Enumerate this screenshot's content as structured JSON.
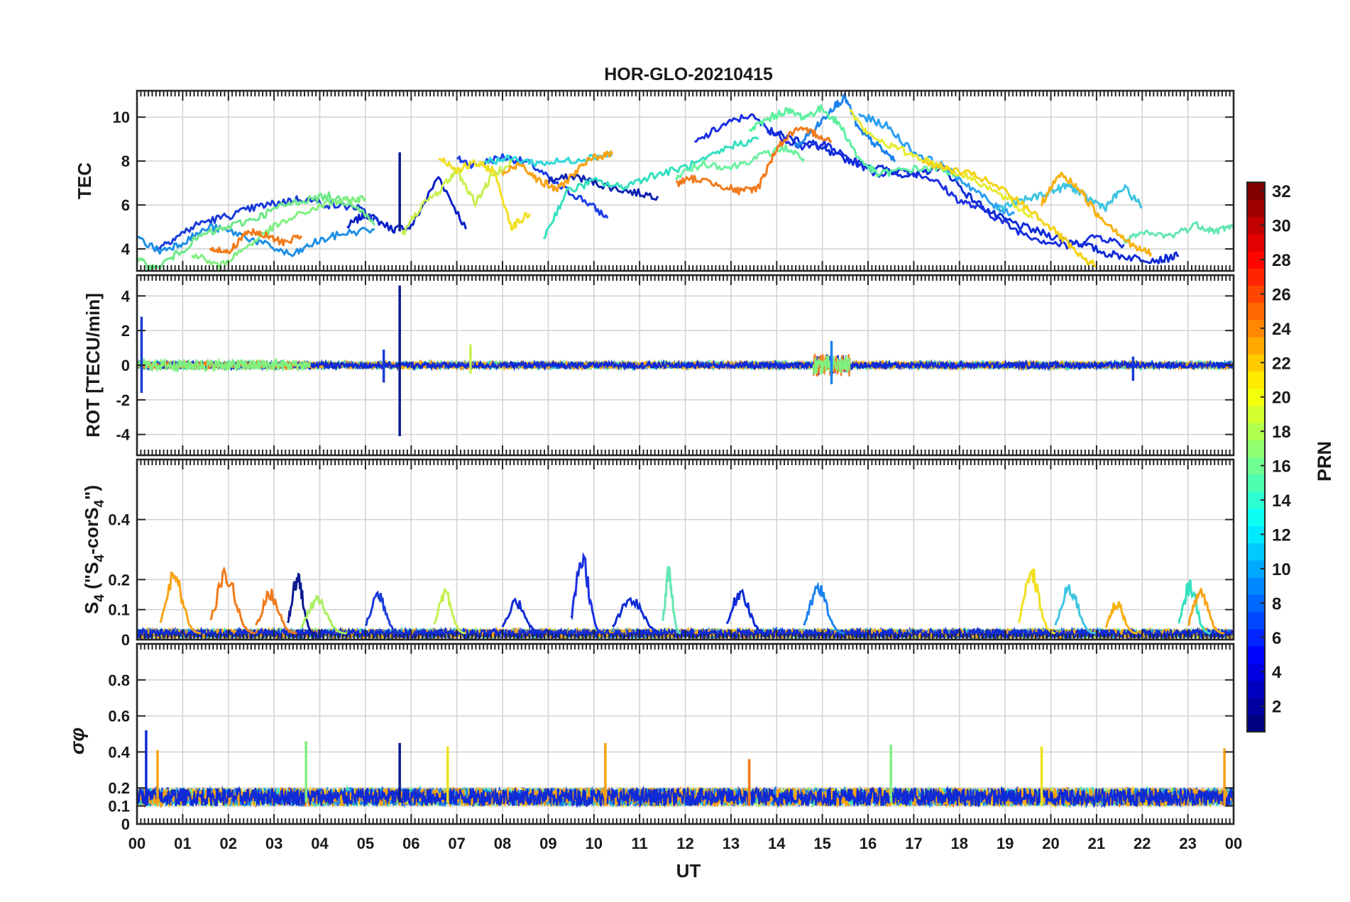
{
  "chart_data": {
    "type": "line",
    "title": "HOR-GLO-20210415",
    "xlabel": "UT",
    "x_ticks": [
      "00",
      "01",
      "02",
      "03",
      "04",
      "05",
      "06",
      "07",
      "08",
      "09",
      "10",
      "11",
      "12",
      "13",
      "14",
      "15",
      "16",
      "17",
      "18",
      "19",
      "20",
      "21",
      "22",
      "23",
      "00"
    ],
    "xlim": [
      0,
      24
    ],
    "grid": true,
    "panels": [
      {
        "id": "tec",
        "ylabel": "TEC",
        "ylim": [
          3,
          11.2
        ],
        "yticks": [
          4,
          6,
          8,
          10
        ],
        "ytick_labels": [
          "4",
          "6",
          "8",
          "10"
        ],
        "series": [
          {
            "prn": 3,
            "color": "#0a1fc8",
            "x": [
              4.6,
              5.0,
              5.6,
              6.0,
              6.6,
              7.2
            ],
            "y": [
              5.0,
              5.6,
              4.9,
              5.0,
              7.3,
              4.9
            ]
          },
          {
            "prn": 5,
            "color": "#1a3ee8",
            "x": [
              7.0,
              7.4,
              8.0,
              8.6,
              9.2,
              9.8,
              10.3
            ],
            "y": [
              8.1,
              7.8,
              8.2,
              7.9,
              6.9,
              6.2,
              5.4
            ]
          },
          {
            "prn": 2,
            "color": "#1022b0",
            "x": [
              9.0,
              9.6,
              10.2,
              10.8,
              11.4
            ],
            "y": [
              7.1,
              7.3,
              6.9,
              6.6,
              6.4
            ]
          },
          {
            "prn": 4,
            "color": "#0f2bd6",
            "x": [
              13.8,
              14.2,
              14.8,
              15.2,
              15.8,
              16.4,
              17.0,
              17.6,
              18.2,
              18.8,
              19.4,
              20.0,
              20.6,
              21.2,
              21.8,
              22.4,
              22.8
            ],
            "y": [
              9.4,
              9.1,
              8.8,
              8.3,
              7.9,
              7.6,
              7.3,
              7.8,
              6.4,
              5.5,
              5.0,
              4.6,
              4.3,
              3.8,
              3.6,
              3.5,
              3.7
            ]
          },
          {
            "prn": 3,
            "color": "#1a2fe0",
            "x": [
              12.2,
              12.8,
              13.4,
              14.0,
              14.6,
              15.0,
              15.6,
              16.2,
              16.8,
              17.4,
              18.0,
              18.6,
              19.2,
              19.8,
              20.4,
              21.0,
              21.6
            ],
            "y": [
              8.8,
              9.6,
              10.1,
              9.2,
              8.6,
              8.8,
              8.1,
              7.4,
              7.6,
              7.2,
              6.2,
              5.7,
              4.9,
              4.4,
              4.1,
              4.6,
              4.2
            ]
          },
          {
            "prn": 4,
            "color": "#1a3ad8",
            "x": [
              0.4,
              0.9,
              1.4,
              2.0,
              2.6,
              3.1,
              3.6,
              4.2,
              4.8,
              5.3
            ],
            "y": [
              4.0,
              4.6,
              5.2,
              5.5,
              5.9,
              6.1,
              6.3,
              6.0,
              5.9,
              5.2
            ]
          },
          {
            "prn": 7,
            "color": "#1e8fe6",
            "x": [
              0.0,
              0.5,
              1.0,
              1.6,
              2.2,
              2.8,
              3.4,
              3.9,
              4.5,
              5.2
            ],
            "y": [
              4.5,
              3.9,
              4.3,
              5.0,
              4.7,
              4.2,
              3.7,
              4.3,
              4.7,
              4.9
            ]
          },
          {
            "prn": 9,
            "color": "#1c82f0",
            "x": [
              14.4,
              14.9,
              15.2,
              15.5,
              15.8,
              16.2,
              16.6
            ],
            "y": [
              8.6,
              9.6,
              10.4,
              10.9,
              9.4,
              8.7,
              8.0
            ]
          },
          {
            "prn": 10,
            "color": "#2b9ef2",
            "x": [
              15.8,
              16.4,
              17.0,
              17.6,
              18.2,
              18.8,
              19.2
            ],
            "y": [
              10.1,
              9.6,
              8.4,
              7.8,
              6.9,
              5.9,
              5.6
            ]
          },
          {
            "prn": 13,
            "color": "#2ed8da",
            "x": [
              7.6,
              8.2,
              8.8,
              9.4,
              10.0,
              10.4
            ],
            "y": [
              8.0,
              8.1,
              7.9,
              8.0,
              8.2,
              8.3
            ]
          },
          {
            "prn": 12,
            "color": "#3cc4e0",
            "x": [
              18.8,
              19.4,
              20.0,
              20.4,
              20.8,
              21.2,
              21.6,
              22.0
            ],
            "y": [
              5.8,
              6.2,
              6.6,
              6.9,
              6.3,
              5.9,
              6.8,
              5.9
            ]
          },
          {
            "prn": 14,
            "color": "#34e0c0",
            "x": [
              8.9,
              9.4,
              10.0,
              10.6,
              11.2,
              11.8,
              12.4,
              13.0,
              13.6
            ],
            "y": [
              4.5,
              6.6,
              7.1,
              6.8,
              7.3,
              7.6,
              8.0,
              8.7,
              9.0
            ]
          },
          {
            "prn": 15,
            "color": "#5ef0a0",
            "x": [
              13.4,
              13.8,
              14.2,
              14.6,
              15.0,
              15.4,
              15.8,
              16.2,
              16.8,
              17.4,
              18.0
            ],
            "y": [
              9.4,
              9.9,
              10.3,
              10.0,
              10.4,
              9.6,
              8.1,
              7.4,
              7.6,
              7.7,
              7.4
            ]
          },
          {
            "prn": 16,
            "color": "#6ee888",
            "x": [
              0.0,
              0.4,
              0.9,
              1.4,
              2.0,
              2.6,
              3.1,
              3.6,
              4.2,
              4.8,
              5.2
            ],
            "y": [
              3.5,
              3.1,
              3.8,
              4.6,
              5.0,
              5.4,
              5.9,
              6.2,
              6.4,
              6.0,
              5.1
            ]
          },
          {
            "prn": 17,
            "color": "#80f080",
            "x": [
              1.2,
              1.8,
              2.4,
              3.0,
              3.6,
              4.2,
              4.6,
              5.0
            ],
            "y": [
              3.8,
              3.2,
              4.1,
              5.0,
              5.6,
              6.1,
              6.2,
              6.3
            ]
          },
          {
            "prn": 15,
            "color": "#6cf2a2",
            "x": [
              11.8,
              12.4,
              13.0,
              13.6,
              14.2,
              14.6
            ],
            "y": [
              7.3,
              7.9,
              7.7,
              8.2,
              8.6,
              8.1
            ]
          },
          {
            "prn": 16,
            "color": "#66e6b2",
            "x": [
              21.6,
              22.0,
              22.6,
              23.2,
              23.6,
              24.0
            ],
            "y": [
              4.3,
              4.7,
              4.6,
              5.1,
              4.8,
              5.1
            ]
          },
          {
            "prn": 18,
            "color": "#c8f050",
            "x": [
              5.8,
              6.2,
              6.6,
              7.0,
              7.4,
              7.8,
              8.2
            ],
            "y": [
              4.6,
              5.9,
              6.6,
              7.6,
              6.1,
              7.4,
              8.0
            ]
          },
          {
            "prn": 19,
            "color": "#e8ec30",
            "x": [
              15.6,
              16.0,
              16.6,
              17.2,
              17.8,
              18.4,
              19.0,
              19.6
            ],
            "y": [
              10.3,
              9.2,
              8.6,
              8.1,
              7.6,
              7.1,
              6.3,
              5.4
            ]
          },
          {
            "prn": 20,
            "color": "#f0e020",
            "x": [
              6.6,
              7.0,
              7.4,
              7.8,
              8.2,
              8.6
            ],
            "y": [
              8.2,
              7.6,
              7.9,
              7.6,
              5.0,
              5.6
            ]
          },
          {
            "prn": 21,
            "color": "#f5d215",
            "x": [
              17.2,
              17.8,
              18.4,
              19.0,
              19.6,
              20.2,
              20.6,
              21.0
            ],
            "y": [
              8.0,
              7.6,
              7.3,
              6.6,
              5.7,
              4.6,
              3.7,
              3.2
            ]
          },
          {
            "prn": 22,
            "color": "#f8b010",
            "x": [
              19.8,
              20.2,
              20.6,
              21.0,
              21.4,
              21.8,
              22.2
            ],
            "y": [
              6.1,
              7.4,
              6.8,
              5.6,
              4.9,
              4.1,
              3.8
            ]
          },
          {
            "prn": 23,
            "color": "#f8a214",
            "x": [
              8.0,
              8.4,
              8.8,
              9.2,
              9.6,
              10.0,
              10.4
            ],
            "y": [
              7.4,
              7.9,
              7.1,
              6.7,
              7.5,
              8.2,
              8.3
            ]
          },
          {
            "prn": 24,
            "color": "#f27a18",
            "x": [
              1.6,
              2.0,
              2.4,
              2.8,
              3.2,
              3.6
            ],
            "y": [
              4.1,
              3.8,
              4.8,
              4.6,
              4.3,
              4.6
            ]
          },
          {
            "prn": 24,
            "color": "#f07a1c",
            "x": [
              11.8,
              12.2,
              12.8,
              13.2,
              13.6,
              14.0,
              14.4,
              14.8,
              15.2
            ],
            "y": [
              7.0,
              7.2,
              6.9,
              6.6,
              6.8,
              8.6,
              9.4,
              9.3,
              8.9
            ]
          }
        ],
        "spikes": [
          {
            "x": 5.75,
            "y0": 4.8,
            "y1": 8.4,
            "color": "#0a1a90"
          }
        ]
      },
      {
        "id": "rot",
        "ylabel": "ROT [TECU/min]",
        "ylim": [
          -5.2,
          5.2
        ],
        "yticks": [
          -4,
          -2,
          0,
          2,
          4
        ],
        "ytick_labels": [
          "-4",
          "-2",
          "0",
          "2",
          "4"
        ],
        "noise_bands": [
          {
            "x0": 0,
            "x1": 24,
            "center": 0,
            "amplitude": 0.2
          },
          {
            "x0": 0,
            "x1": 3.8,
            "center": 0,
            "amplitude": 0.35
          },
          {
            "x0": 14.8,
            "x1": 15.6,
            "center": 0,
            "amplitude": 0.6
          }
        ],
        "spikes": [
          {
            "x": 5.75,
            "y0": -4.1,
            "y1": 4.6,
            "color": "#0a1a90"
          },
          {
            "x": 0.1,
            "y0": -1.6,
            "y1": 2.8,
            "color": "#1a3ad8"
          },
          {
            "x": 5.4,
            "y0": -1.0,
            "y1": 0.9,
            "color": "#1a3ad8"
          },
          {
            "x": 7.3,
            "y0": -0.5,
            "y1": 1.2,
            "color": "#c8f050"
          },
          {
            "x": 15.2,
            "y0": -1.1,
            "y1": 1.4,
            "color": "#1c82f0"
          },
          {
            "x": 21.8,
            "y0": -0.9,
            "y1": 0.5,
            "color": "#1a3ad8"
          }
        ]
      },
      {
        "id": "s4",
        "ylabel": "S4 (\"S4-corS4\")",
        "ylim": [
          0,
          0.6
        ],
        "yticks": [
          0,
          0.1,
          0.2,
          0.4
        ],
        "ytick_labels": [
          "0",
          "0.1",
          "0.2",
          "0.4"
        ],
        "baseline": {
          "value": 0.02,
          "amplitude": 0.015
        },
        "peaks": [
          {
            "x0": 0.5,
            "x1": 1.4,
            "peak": 0.22,
            "color": "#f8a214"
          },
          {
            "x0": 1.6,
            "x1": 2.6,
            "peak": 0.23,
            "color": "#f27a18"
          },
          {
            "x0": 2.6,
            "x1": 3.5,
            "peak": 0.16,
            "color": "#f07a1c"
          },
          {
            "x0": 3.3,
            "x1": 3.9,
            "peak": 0.22,
            "color": "#0a1a90"
          },
          {
            "x0": 3.6,
            "x1": 4.6,
            "peak": 0.14,
            "color": "#a8f060"
          },
          {
            "x0": 5.0,
            "x1": 5.8,
            "peak": 0.16,
            "color": "#1a3ad8"
          },
          {
            "x0": 6.5,
            "x1": 7.2,
            "peak": 0.17,
            "color": "#c8f050"
          },
          {
            "x0": 8.0,
            "x1": 8.9,
            "peak": 0.13,
            "color": "#0f2bd6"
          },
          {
            "x0": 9.5,
            "x1": 10.2,
            "peak": 0.29,
            "color": "#1a2fe0"
          },
          {
            "x0": 10.4,
            "x1": 11.6,
            "peak": 0.14,
            "color": "#0f2bd6"
          },
          {
            "x0": 11.5,
            "x1": 11.9,
            "peak": 0.23,
            "color": "#66e6b2"
          },
          {
            "x0": 12.9,
            "x1": 13.8,
            "peak": 0.17,
            "color": "#0f2bd6"
          },
          {
            "x0": 14.6,
            "x1": 15.5,
            "peak": 0.18,
            "color": "#1c82f0"
          },
          {
            "x0": 19.3,
            "x1": 20.1,
            "peak": 0.23,
            "color": "#f0e020"
          },
          {
            "x0": 20.1,
            "x1": 21.0,
            "peak": 0.18,
            "color": "#3cc4e0"
          },
          {
            "x0": 21.2,
            "x1": 21.9,
            "peak": 0.13,
            "color": "#f8b010"
          },
          {
            "x0": 22.8,
            "x1": 23.5,
            "peak": 0.19,
            "color": "#34e0c0"
          },
          {
            "x0": 23.0,
            "x1": 23.8,
            "peak": 0.17,
            "color": "#f8a214"
          }
        ]
      },
      {
        "id": "sigma",
        "ylabel": "σφ",
        "ylim": [
          0,
          1.0
        ],
        "yticks": [
          0,
          0.1,
          0.2,
          0.4,
          0.6,
          0.8
        ],
        "ytick_labels": [
          "0",
          "0.1",
          "0.2",
          "0.4",
          "0.6",
          "0.8"
        ],
        "baseline": {
          "value": 0.15,
          "amplitude": 0.05
        },
        "spikes": [
          {
            "x": 0.2,
            "y0": 0.1,
            "y1": 0.52,
            "color": "#0f2bd6"
          },
          {
            "x": 0.45,
            "y0": 0.1,
            "y1": 0.41,
            "color": "#f8a214"
          },
          {
            "x": 3.7,
            "y0": 0.12,
            "y1": 0.46,
            "color": "#80f080"
          },
          {
            "x": 5.75,
            "y0": 0.12,
            "y1": 0.45,
            "color": "#0a1a90"
          },
          {
            "x": 6.8,
            "y0": 0.12,
            "y1": 0.43,
            "color": "#f0e020"
          },
          {
            "x": 10.25,
            "y0": 0.1,
            "y1": 0.45,
            "color": "#f8a214"
          },
          {
            "x": 13.4,
            "y0": 0.1,
            "y1": 0.36,
            "color": "#f27a18"
          },
          {
            "x": 16.5,
            "y0": 0.12,
            "y1": 0.44,
            "color": "#80f080"
          },
          {
            "x": 19.8,
            "y0": 0.1,
            "y1": 0.43,
            "color": "#f0e020"
          },
          {
            "x": 23.8,
            "y0": 0.1,
            "y1": 0.42,
            "color": "#f8a214"
          }
        ]
      }
    ],
    "colorbar": {
      "label": "PRN",
      "range": [
        1,
        32
      ],
      "ticks": [
        "2",
        "4",
        "6",
        "8",
        "10",
        "12",
        "14",
        "16",
        "18",
        "20",
        "22",
        "24",
        "26",
        "28",
        "30",
        "32"
      ]
    }
  }
}
